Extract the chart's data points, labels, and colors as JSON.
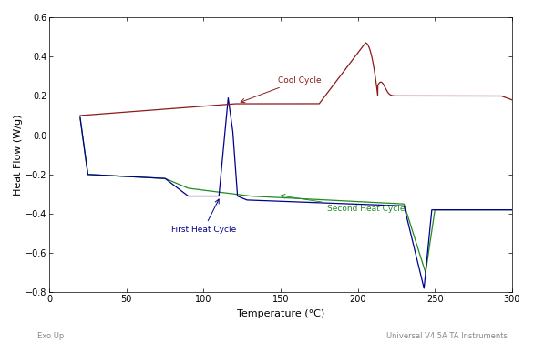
{
  "title": "",
  "xlabel": "Temperature (°C)",
  "ylabel": "Heat Flow (W/g)",
  "xlim": [
    0,
    300
  ],
  "ylim": [
    -0.8,
    0.6
  ],
  "yticks": [
    -0.8,
    -0.6,
    -0.4,
    -0.2,
    0.0,
    0.2,
    0.4,
    0.6
  ],
  "xticks": [
    0,
    50,
    100,
    150,
    200,
    250,
    300
  ],
  "cool_color": "#8B1A1A",
  "heat1_color": "#00008B",
  "heat2_color": "#228B22",
  "footer_left": "Exo Up",
  "footer_right": "Universal V4.5A TA Instruments",
  "label_cool": "Cool Cycle",
  "label_heat1": "First Heat Cycle",
  "label_heat2": "Second Heat Cycle",
  "bg_color": "#FFFFFF",
  "plot_bg": "#FFFFFF"
}
